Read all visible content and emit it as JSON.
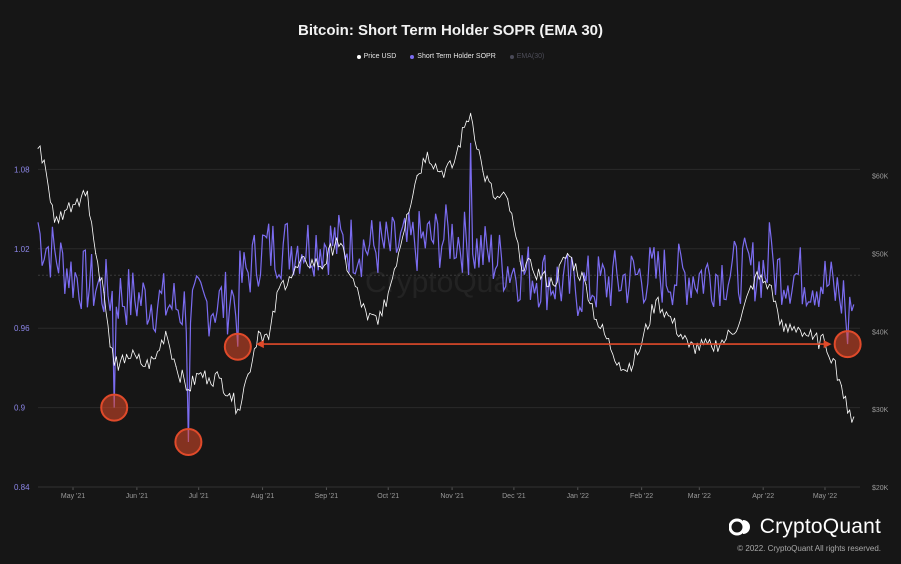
{
  "chart_data": {
    "type": "line",
    "title": "Bitcoin: Short Term Holder SOPR (EMA 30)",
    "watermark": "CryptoQuant",
    "x_tick_labels": [
      "May '21",
      "Jun '21",
      "Jul '21",
      "Aug '21",
      "Sep '21",
      "Oct '21",
      "Nov '21",
      "Dec '21",
      "Jan '22",
      "Feb '22",
      "Mar '22",
      "Apr '22",
      "May '22"
    ],
    "y_left_ticks": [
      "0.84",
      "0.9",
      "0.96",
      "1.02",
      "1.08"
    ],
    "y_left_range": [
      0.84,
      1.14
    ],
    "y_right_ticks": [
      "$20K",
      "$30K",
      "$40K",
      "$50K",
      "$60K"
    ],
    "y_right_range": [
      20000,
      71000
    ],
    "legend": [
      "Price USD",
      "Short Term Holder SOPR",
      "EMA(30)"
    ],
    "legend_placement": "top-center",
    "colors": {
      "price": "#ffffff",
      "sopr": "#7b6cf0",
      "ema": "#4a4a58",
      "annotation": "#e04a2a",
      "background": "#161616"
    },
    "series": [
      {
        "name": "Price USD",
        "axis": "right",
        "x": [
          "2021-04-14",
          "2021-04-17",
          "2021-04-22",
          "2021-04-27",
          "2021-05-03",
          "2021-05-08",
          "2021-05-12",
          "2021-05-16",
          "2021-05-19",
          "2021-05-23",
          "2021-05-27",
          "2021-06-01",
          "2021-06-05",
          "2021-06-10",
          "2021-06-15",
          "2021-06-20",
          "2021-06-26",
          "2021-07-01",
          "2021-07-06",
          "2021-07-11",
          "2021-07-16",
          "2021-07-20",
          "2021-07-25",
          "2021-07-30",
          "2021-08-04",
          "2021-08-09",
          "2021-08-14",
          "2021-08-22",
          "2021-08-31",
          "2021-09-06",
          "2021-09-13",
          "2021-09-21",
          "2021-09-28",
          "2021-10-04",
          "2021-10-10",
          "2021-10-15",
          "2021-10-20",
          "2021-10-26",
          "2021-11-01",
          "2021-11-08",
          "2021-11-10",
          "2021-11-16",
          "2021-11-22",
          "2021-11-28",
          "2021-12-04",
          "2021-12-10",
          "2021-12-20",
          "2021-12-27",
          "2022-01-05",
          "2022-01-10",
          "2022-01-21",
          "2022-01-24",
          "2022-01-30",
          "2022-02-08",
          "2022-02-14",
          "2022-02-24",
          "2022-03-07",
          "2022-03-14",
          "2022-03-21",
          "2022-03-28",
          "2022-04-04",
          "2022-04-11",
          "2022-04-18",
          "2022-04-25",
          "2022-05-01",
          "2022-05-05",
          "2022-05-09",
          "2022-05-12",
          "2022-05-15"
        ],
        "values": [
          63500,
          62000,
          54000,
          55500,
          57000,
          58000,
          50000,
          45000,
          38000,
          35000,
          37000,
          36500,
          35500,
          36500,
          40000,
          35500,
          32500,
          34500,
          34000,
          34000,
          32000,
          30000,
          34500,
          40000,
          39000,
          45500,
          47000,
          49000,
          48500,
          52000,
          47000,
          41500,
          42000,
          48000,
          55000,
          60000,
          63000,
          60500,
          61000,
          67000,
          68000,
          60500,
          57000,
          57000,
          49000,
          48000,
          46000,
          50000,
          46000,
          41500,
          36000,
          35000,
          37000,
          44000,
          42000,
          38000,
          38000,
          39000,
          41500,
          47000,
          46000,
          40000,
          40500,
          39000,
          38500,
          36500,
          33000,
          29500,
          29000
        ]
      },
      {
        "name": "Short Term Holder SOPR",
        "axis": "left",
        "x_range": [
          "2021-04-14",
          "2022-05-15"
        ],
        "min_points": {
          "2021-05-21": 0.9,
          "2021-06-26": 0.874,
          "2021-07-20": 0.946,
          "2022-05-12": 0.948
        },
        "max_points": {
          "2021-11-10": 1.1,
          "2022-04-04": 1.04
        },
        "start_value": 1.04,
        "end_value": 0.978
      },
      {
        "name": "EMA(30)",
        "axis": "left"
      }
    ],
    "annotations": {
      "circles": [
        "2021-05-21",
        "2021-06-26",
        "2021-07-20",
        "2022-05-12"
      ],
      "arrow": {
        "from": "2021-07-20",
        "to": "2022-05-12"
      }
    }
  },
  "brand": {
    "name": "CryptoQuant",
    "copyright": "© 2022. CryptoQuant All rights reserved."
  }
}
